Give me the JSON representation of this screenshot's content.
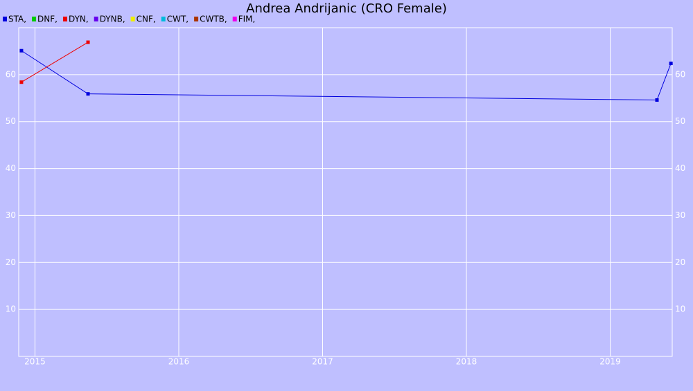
{
  "chart_data": {
    "type": "line",
    "title": "Andrea Andrijanic (CRO Female)",
    "series": [
      {
        "name": "STA,",
        "color": "#0000dd",
        "x": [
          2014.906,
          2015.369,
          2019.325,
          2019.422
        ],
        "values": [
          65.1,
          55.9,
          54.6,
          62.4
        ]
      },
      {
        "name": "DNF,",
        "color": "#00cc00",
        "x": [],
        "values": []
      },
      {
        "name": "DYN,",
        "color": "#ee0000",
        "x": [
          2014.906,
          2015.369
        ],
        "values": [
          58.4,
          66.9
        ]
      },
      {
        "name": "DYNB,",
        "color": "#6600ee",
        "x": [],
        "values": []
      },
      {
        "name": "CNF,",
        "color": "#eeee00",
        "x": [],
        "values": []
      },
      {
        "name": "CWT,",
        "color": "#00bbdd",
        "x": [],
        "values": []
      },
      {
        "name": "CWTB,",
        "color": "#aa3300",
        "x": [],
        "values": []
      },
      {
        "name": "FIM,",
        "color": "#ee00ee",
        "x": [],
        "values": []
      }
    ],
    "xlim": [
      2014.887,
      2019.431
    ],
    "xticks": [
      2015,
      2016,
      2017,
      2018,
      2019
    ],
    "ylim": [
      0,
      70
    ],
    "yticks": [
      10,
      20,
      30,
      40,
      50,
      60
    ],
    "grid": true
  }
}
